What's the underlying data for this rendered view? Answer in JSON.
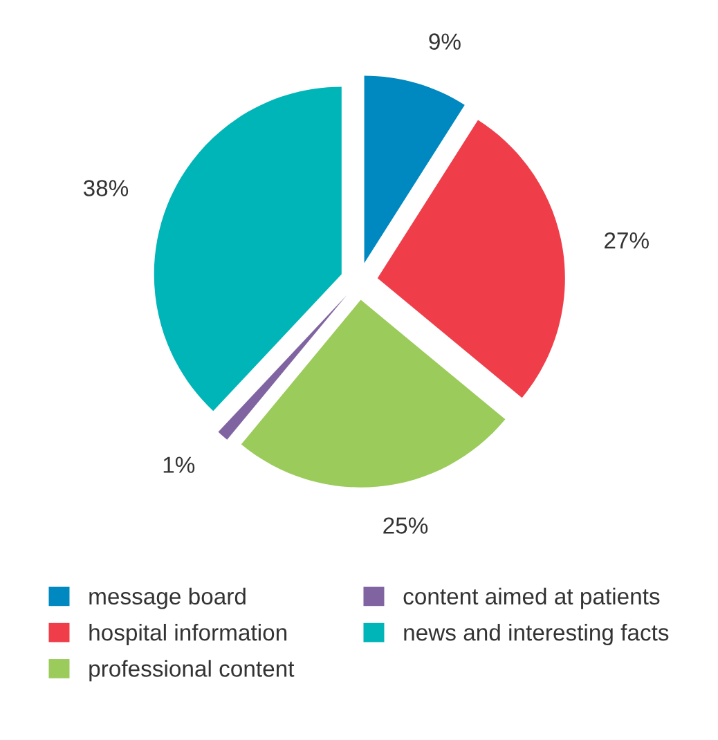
{
  "chart_data": {
    "type": "pie",
    "categories": [
      "message board",
      "hospital information",
      "professional content",
      "content aimed at patients",
      "news and interesting facts"
    ],
    "values": [
      9,
      27,
      25,
      1,
      38
    ],
    "colors": [
      "#0088c0",
      "#ef3e4a",
      "#9bcb5a",
      "#8064a2",
      "#00b5b8"
    ],
    "value_labels": [
      "9%",
      "27%",
      "25%",
      "1%",
      "38%"
    ],
    "legend": "bottom"
  }
}
